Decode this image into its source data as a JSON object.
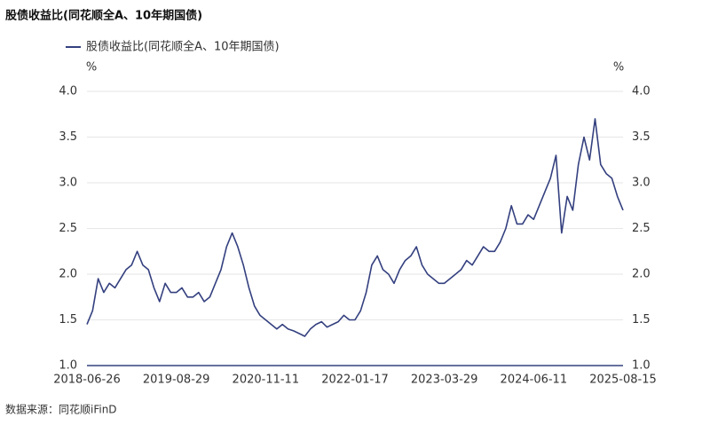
{
  "chart_data": {
    "type": "line",
    "title": "股债收益比(同花顺全A、10年期国债)",
    "y_unit": "%",
    "source": "数据来源：同花顺iFinD",
    "categories": [
      "2018-06-26",
      null,
      null,
      null,
      null,
      null,
      null,
      null,
      null,
      null,
      null,
      null,
      null,
      null,
      null,
      null,
      "2019-08-29",
      null,
      null,
      null,
      null,
      null,
      null,
      null,
      null,
      null,
      null,
      null,
      null,
      null,
      null,
      null,
      "2020-11-11",
      null,
      null,
      null,
      null,
      null,
      null,
      null,
      null,
      null,
      null,
      null,
      null,
      null,
      null,
      null,
      "2022-01-17",
      null,
      null,
      null,
      null,
      null,
      null,
      null,
      null,
      null,
      null,
      null,
      null,
      null,
      null,
      null,
      "2023-03-29",
      null,
      null,
      null,
      null,
      null,
      null,
      null,
      null,
      null,
      null,
      null,
      null,
      null,
      null,
      null,
      "2024-06-11",
      null,
      null,
      null,
      null,
      null,
      null,
      null,
      null,
      null,
      null,
      null,
      null,
      null,
      null,
      null,
      "2025-08-15"
    ],
    "series": [
      {
        "name": "股债收益比(同花顺全A、10年期国债)",
        "color": "#34407f",
        "values": [
          1.45,
          1.6,
          1.95,
          1.8,
          1.9,
          1.85,
          1.95,
          2.05,
          2.1,
          2.25,
          2.1,
          2.05,
          1.85,
          1.7,
          1.9,
          1.8,
          1.8,
          1.85,
          1.75,
          1.75,
          1.8,
          1.7,
          1.75,
          1.9,
          2.05,
          2.3,
          2.45,
          2.3,
          2.1,
          1.85,
          1.65,
          1.55,
          1.5,
          1.45,
          1.4,
          1.45,
          1.4,
          1.38,
          1.35,
          1.32,
          1.4,
          1.45,
          1.48,
          1.42,
          1.45,
          1.48,
          1.55,
          1.5,
          1.5,
          1.6,
          1.8,
          2.1,
          2.2,
          2.05,
          2.0,
          1.9,
          2.05,
          2.15,
          2.2,
          2.3,
          2.1,
          2.0,
          1.95,
          1.9,
          1.9,
          1.95,
          2.0,
          2.05,
          2.15,
          2.1,
          2.2,
          2.3,
          2.25,
          2.25,
          2.35,
          2.5,
          2.75,
          2.55,
          2.55,
          2.65,
          2.6,
          2.75,
          2.9,
          3.05,
          3.3,
          2.45,
          2.85,
          2.7,
          3.2,
          3.5,
          3.25,
          3.7,
          3.2,
          3.1,
          3.05,
          2.85,
          2.7
        ]
      }
    ],
    "ylim": [
      1.0,
      4.0
    ],
    "yticks": [
      {
        "value": 1.0,
        "label": "1.0"
      },
      1.5,
      {
        "value": 2.0,
        "label": "2.0"
      },
      2.5,
      {
        "value": 3.0,
        "label": "3.0"
      },
      3.5,
      {
        "value": 4.0,
        "label": "4.0"
      }
    ],
    "y2lim": [
      1.0,
      4.0
    ],
    "y2ticks": [
      {
        "value": 1.0,
        "label": "1.0"
      },
      1.5,
      {
        "value": 2.0,
        "label": "2.0"
      },
      2.5,
      {
        "value": 3.0,
        "label": "3.0"
      },
      3.5,
      {
        "value": 4.0,
        "label": "4.0"
      }
    ],
    "grid": true
  }
}
